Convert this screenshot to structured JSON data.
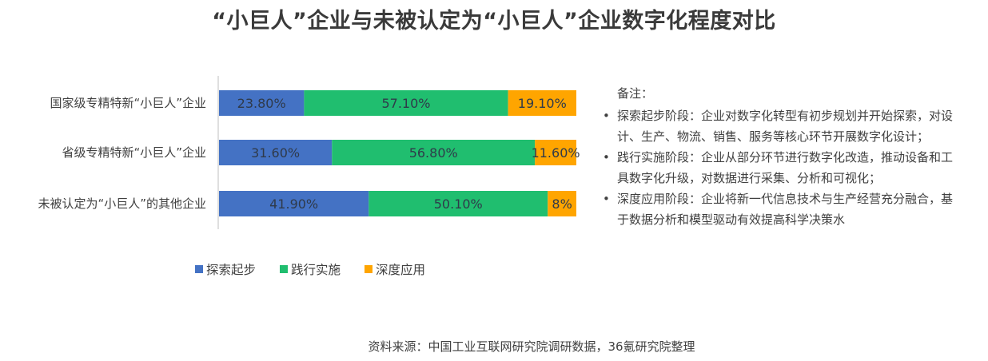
{
  "title": "“小巨人”企业与未被认定为“小巨人”企业数字化程度对比",
  "chart_data": {
    "type": "bar",
    "orientation": "horizontal",
    "stacked": true,
    "percent_stacked": true,
    "categories": [
      "国家级专精特新“小巨人”企业",
      "省级专精特新“小巨人”企业",
      "未被认定为“小巨人”的其他企业"
    ],
    "series": [
      {
        "name": "探索起步",
        "values": [
          23.8,
          31.6,
          41.9
        ],
        "labels": [
          "23.80%",
          "31.60%",
          "41.90%"
        ],
        "color": "#4472C4",
        "label_color": "#2f3a4a"
      },
      {
        "name": "践行实施",
        "values": [
          57.1,
          56.8,
          50.1
        ],
        "labels": [
          "57.10%",
          "56.80%",
          "50.10%"
        ],
        "color": "#20BE6F",
        "label_color": "#2f3a4a"
      },
      {
        "name": "深度应用",
        "values": [
          19.1,
          11.6,
          8
        ],
        "labels": [
          "19.10%",
          "11.60%",
          "8%"
        ],
        "color": "#FFA500",
        "label_color": "#2f3a4a"
      }
    ],
    "xlim": [
      0,
      100
    ],
    "grid": false,
    "legend_position": "bottom"
  },
  "notes": {
    "heading": "备注：",
    "bullet": "•",
    "items": [
      {
        "line1": "探索起步阶段：企业对数字化转型有初步规划并开始探索，对设",
        "line2": "计、生产、物流、销售、服务等核心环节开展数字化设计；"
      },
      {
        "line1": "践行实施阶段：企业从部分环节进行数字化改造，推动设备和工",
        "line2": "具数字化升级，对数据进行采集、分析和可视化；"
      },
      {
        "line1": "深度应用阶段：企业将新一代信息技术与生产经营充分融合，基",
        "line2": "于数据分析和模型驱动有效提高科学决策水"
      }
    ]
  },
  "source": "资料来源：中国工业互联网研究院调研数据，36氪研究院整理"
}
